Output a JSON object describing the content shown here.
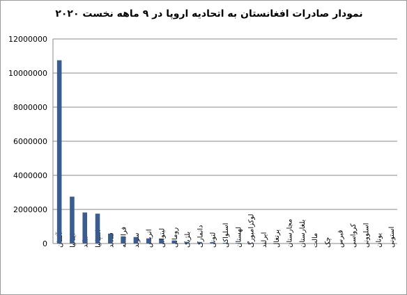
{
  "chart_data": {
    "type": "bar",
    "title": "نمودار صادرات افغانستان به اتحادیه اروپا در ۹ ماهه نخست ۲۰۲۰",
    "categories": [
      "آلمان",
      "ایتالیا",
      "هلند",
      "اسپانیا",
      "فنلاند",
      "فرانسه",
      "سوئد",
      "اتریش",
      "لیتوانی",
      "رومانی",
      "بلژیک",
      "دانمارک",
      "لتونی",
      "اسلواکی",
      "لهستان",
      "لوکزامبورگ",
      "ایرلند",
      "پرتغال",
      "مجارستان",
      "بلغارستان",
      "مالت",
      "چک",
      "قبرس",
      "کرواسی",
      "اسلوونی",
      "یونان",
      "استونی"
    ],
    "values": [
      10750000,
      2750000,
      1820000,
      1750000,
      580000,
      420000,
      380000,
      300000,
      250000,
      180000,
      100000,
      90000,
      80000,
      40000,
      30000,
      20000,
      5000,
      0,
      0,
      0,
      0,
      0,
      0,
      0,
      0,
      0,
      0
    ],
    "color": "#3b5c8f",
    "ylim": [
      0,
      12000000
    ],
    "yticks": [
      0,
      2000000,
      4000000,
      6000000,
      8000000,
      10000000,
      12000000
    ],
    "grid": true
  }
}
